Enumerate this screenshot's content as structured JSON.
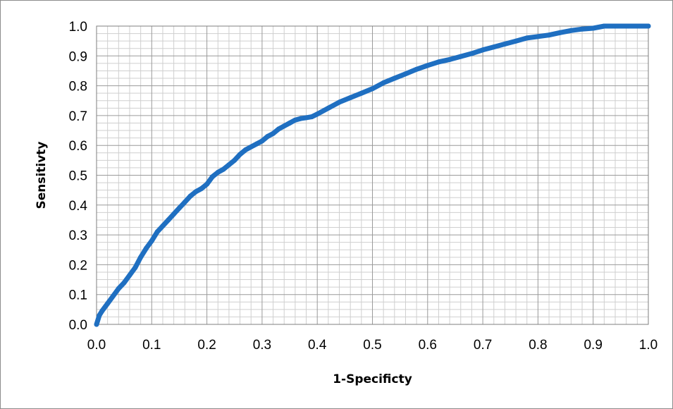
{
  "chart_data": {
    "type": "line",
    "xlabel": "1-Specificty",
    "ylabel": "Sensitivty",
    "xlim": [
      0,
      1
    ],
    "ylim": [
      0,
      1
    ],
    "x_ticks": [
      "0.0",
      "0.1",
      "0.2",
      "0.3",
      "0.4",
      "0.5",
      "0.6",
      "0.7",
      "0.8",
      "0.9",
      "1.0"
    ],
    "y_ticks": [
      "0.0",
      "0.1",
      "0.2",
      "0.3",
      "0.4",
      "0.5",
      "0.6",
      "0.7",
      "0.8",
      "0.9",
      "1.0"
    ],
    "grid": "major and minor",
    "legend": "none",
    "series": [
      {
        "color": "#1f6fc1",
        "x": [
          0.0,
          0.005,
          0.01,
          0.02,
          0.03,
          0.04,
          0.05,
          0.06,
          0.07,
          0.08,
          0.09,
          0.1,
          0.11,
          0.12,
          0.13,
          0.14,
          0.15,
          0.16,
          0.17,
          0.18,
          0.19,
          0.2,
          0.21,
          0.22,
          0.23,
          0.24,
          0.25,
          0.26,
          0.27,
          0.28,
          0.29,
          0.3,
          0.31,
          0.32,
          0.33,
          0.34,
          0.35,
          0.36,
          0.37,
          0.38,
          0.39,
          0.4,
          0.42,
          0.44,
          0.46,
          0.48,
          0.5,
          0.52,
          0.54,
          0.56,
          0.58,
          0.6,
          0.62,
          0.64,
          0.66,
          0.68,
          0.7,
          0.72,
          0.74,
          0.76,
          0.78,
          0.8,
          0.82,
          0.84,
          0.86,
          0.88,
          0.9,
          0.92,
          0.94,
          0.96,
          1.0
        ],
        "y": [
          0.0,
          0.03,
          0.045,
          0.07,
          0.095,
          0.12,
          0.14,
          0.165,
          0.19,
          0.225,
          0.255,
          0.28,
          0.31,
          0.33,
          0.35,
          0.37,
          0.39,
          0.41,
          0.43,
          0.445,
          0.455,
          0.47,
          0.495,
          0.51,
          0.52,
          0.535,
          0.55,
          0.57,
          0.585,
          0.595,
          0.605,
          0.615,
          0.63,
          0.64,
          0.655,
          0.665,
          0.675,
          0.685,
          0.69,
          0.693,
          0.696,
          0.705,
          0.725,
          0.745,
          0.76,
          0.775,
          0.79,
          0.81,
          0.825,
          0.84,
          0.855,
          0.868,
          0.88,
          0.888,
          0.898,
          0.908,
          0.92,
          0.93,
          0.94,
          0.95,
          0.96,
          0.965,
          0.97,
          0.978,
          0.985,
          0.99,
          0.993,
          1.0,
          1.0,
          1.0,
          1.0
        ]
      }
    ]
  }
}
